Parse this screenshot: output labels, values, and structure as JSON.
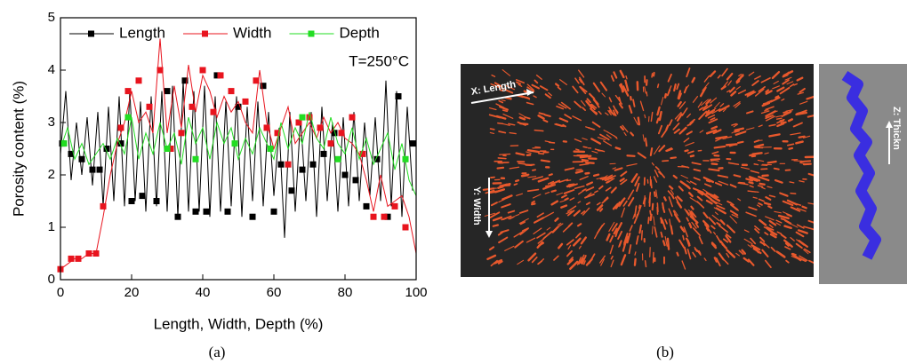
{
  "chart_data": {
    "type": "line",
    "y_label": "Porosity content (%)",
    "x_label": "Length, Width, Depth  (%)",
    "annotation": "T=250°C",
    "caption": "(a)",
    "xlim": [
      0,
      100
    ],
    "xticks": [
      0,
      20,
      40,
      60,
      80,
      100
    ],
    "ylim": [
      0,
      5
    ],
    "yticks": [
      0,
      1,
      2,
      3,
      4,
      5
    ],
    "legend": "top-left",
    "series": [
      {
        "name": "Length",
        "color": "#000000",
        "x": [
          0,
          1.5,
          3,
          4.5,
          6,
          7.5,
          9,
          10.5,
          12,
          13.5,
          15,
          16.5,
          18,
          19.5,
          21,
          22.5,
          24,
          25.5,
          27,
          28.5,
          30,
          31.5,
          33,
          34.5,
          36,
          37.5,
          39,
          40.5,
          42,
          43.5,
          45,
          46.5,
          48,
          49.5,
          51,
          52.5,
          54,
          55.5,
          57,
          58.5,
          60,
          61.5,
          63,
          64.5,
          66,
          67.5,
          69,
          70.5,
          72,
          73.5,
          75,
          76.5,
          78,
          79.5,
          81,
          82.5,
          84,
          85.5,
          87,
          88.5,
          90,
          91.5,
          93,
          94.5,
          96,
          97.5,
          99
        ],
        "values": [
          2.4,
          3.6,
          1.9,
          3.0,
          2.0,
          3.1,
          1.8,
          3.2,
          1.4,
          3.3,
          1.5,
          3.5,
          1.4,
          3.6,
          1.5,
          3.4,
          1.3,
          3.5,
          1.4,
          3.6,
          1.3,
          3.7,
          1.2,
          3.8,
          1.3,
          3.6,
          1.3,
          3.7,
          1.2,
          3.5,
          1.3,
          3.4,
          1.4,
          3.5,
          1.2,
          3.3,
          1.5,
          3.4,
          1.4,
          3.2,
          1.6,
          2.9,
          0.8,
          3.2,
          1.3,
          3.1,
          1.5,
          3.2,
          1.2,
          3.3,
          1.5,
          3.0,
          1.3,
          3.1,
          1.4,
          3.2,
          1.5,
          3.0,
          1.6,
          3.1,
          1.5,
          3.8,
          1.4,
          3.6,
          1.2,
          3.3,
          1.7
        ],
        "marker_x": [
          0.5,
          3,
          6,
          9,
          11,
          13,
          17,
          20,
          23,
          27,
          30,
          33,
          35,
          38,
          41,
          44,
          47,
          50,
          54,
          57,
          60,
          62,
          65,
          68,
          71,
          74,
          77,
          80,
          83,
          86,
          89,
          92,
          95,
          99
        ],
        "marker_values": [
          2.6,
          2.4,
          2.3,
          2.1,
          2.1,
          2.5,
          2.6,
          1.5,
          1.6,
          1.5,
          3.6,
          1.2,
          3.8,
          1.3,
          1.3,
          3.9,
          1.3,
          3.3,
          1.2,
          3.7,
          1.3,
          2.2,
          1.7,
          2.1,
          2.2,
          2.4,
          2.8,
          2.0,
          1.9,
          1.4,
          2.3,
          1.2,
          3.5,
          2.6
        ]
      },
      {
        "name": "Width",
        "color": "#e8141e",
        "x": [
          0,
          2,
          4,
          6,
          8,
          10,
          12,
          14,
          16,
          18,
          20,
          22,
          24,
          26,
          28,
          30,
          32,
          34,
          36,
          38,
          40,
          42,
          44,
          46,
          48,
          50,
          52,
          54,
          56,
          58,
          60,
          62,
          64,
          66,
          68,
          70,
          72,
          74,
          76,
          78,
          80,
          82,
          84,
          86,
          88,
          90,
          92,
          94,
          96,
          98,
          100
        ],
        "values": [
          0.2,
          0.3,
          0.4,
          0.4,
          0.5,
          0.5,
          1.2,
          2.0,
          2.6,
          3.0,
          3.6,
          3.0,
          3.2,
          2.8,
          4.6,
          2.8,
          3.7,
          2.9,
          4.1,
          3.2,
          3.9,
          3.6,
          3.1,
          3.5,
          3.2,
          3.4,
          3.0,
          2.8,
          4.0,
          3.0,
          2.5,
          2.9,
          3.3,
          2.6,
          2.8,
          3.0,
          2.7,
          3.1,
          2.8,
          3.0,
          2.7,
          2.6,
          2.4,
          1.9,
          1.3,
          2.0,
          1.4,
          1.5,
          1.6,
          1.2,
          0.5
        ],
        "marker_x": [
          0,
          3,
          5,
          8,
          10,
          12,
          17,
          19,
          22,
          25,
          28,
          31,
          34,
          37,
          40,
          43,
          45,
          48,
          52,
          55,
          58,
          61,
          64,
          67,
          70,
          73,
          76,
          79,
          82,
          85,
          88,
          91,
          94,
          97
        ],
        "marker_values": [
          0.2,
          0.4,
          0.4,
          0.5,
          0.5,
          1.4,
          2.9,
          3.6,
          3.8,
          3.3,
          4.0,
          2.5,
          2.8,
          3.3,
          4.0,
          3.2,
          3.9,
          3.6,
          3.4,
          3.8,
          2.9,
          2.8,
          2.2,
          3.0,
          3.1,
          2.9,
          2.6,
          2.8,
          3.1,
          2.4,
          1.2,
          1.2,
          1.4,
          1.0
        ]
      },
      {
        "name": "Depth",
        "color": "#22dd22",
        "x": [
          0,
          2,
          4,
          6,
          8,
          10,
          12,
          14,
          16,
          18,
          20,
          22,
          24,
          26,
          28,
          30,
          32,
          34,
          36,
          38,
          40,
          42,
          44,
          46,
          48,
          50,
          52,
          54,
          56,
          58,
          60,
          62,
          64,
          66,
          68,
          70,
          72,
          74,
          76,
          78,
          80,
          82,
          84,
          86,
          88,
          90,
          92,
          94,
          96,
          98,
          100
        ],
        "values": [
          2.5,
          2.9,
          2.3,
          2.6,
          2.2,
          2.4,
          2.6,
          2.3,
          2.7,
          2.4,
          3.1,
          2.3,
          2.8,
          2.4,
          3.0,
          2.5,
          2.8,
          2.2,
          3.1,
          2.6,
          2.9,
          2.3,
          3.0,
          2.6,
          2.9,
          2.3,
          2.7,
          2.4,
          2.9,
          2.6,
          2.3,
          3.0,
          2.5,
          2.9,
          2.6,
          3.2,
          2.7,
          2.5,
          3.1,
          2.6,
          2.4,
          2.9,
          2.3,
          2.7,
          2.2,
          2.5,
          2.8,
          2.1,
          2.6,
          1.9,
          1.6
        ],
        "marker_x": [
          1,
          19,
          30,
          38,
          49,
          59,
          68,
          78,
          97
        ],
        "marker_values": [
          2.6,
          3.1,
          2.5,
          2.3,
          2.6,
          2.5,
          3.1,
          2.3,
          2.3
        ]
      }
    ]
  },
  "image": {
    "caption": "(b)",
    "labels": [
      "X: Length",
      "Y: Width",
      "Z: Thickn"
    ]
  }
}
